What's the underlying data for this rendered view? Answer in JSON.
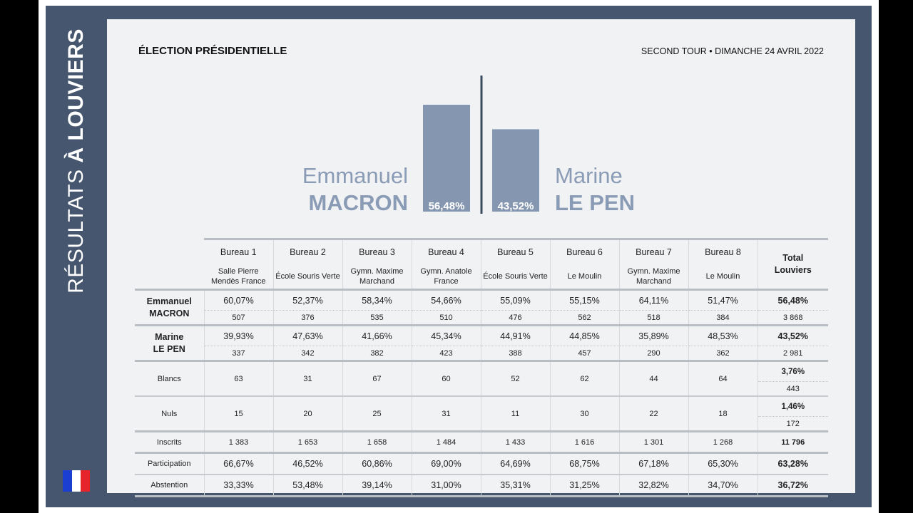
{
  "side_title": {
    "thin": "RÉSULTATS ",
    "bold": "À LOUVIERS"
  },
  "flag_colors": [
    "#1a3fd1",
    "#ffffff",
    "#e8242b"
  ],
  "header": {
    "left": "ÉLECTION PRÉSIDENTIELLE",
    "right": "SECOND TOUR • DIMANCHE 24 AVRIL 2022"
  },
  "candidates": {
    "left": {
      "first": "Emmanuel",
      "last": "MACRON"
    },
    "right": {
      "first": "Marine",
      "last": "LE PEN"
    }
  },
  "colors": {
    "bar": "#8597b0",
    "accent": "#8a9bb5",
    "divider": "#3c4a5e"
  },
  "chart_data": {
    "type": "bar",
    "categories": [
      "Emmanuel MACRON",
      "Marine LE PEN"
    ],
    "values": [
      56.48,
      43.52
    ],
    "value_labels": [
      "56,48%",
      "43,52%"
    ],
    "unit": "%"
  },
  "table": {
    "bureaus": [
      {
        "name": "Bureau 1",
        "location": "Salle Pierre Mendès France"
      },
      {
        "name": "Bureau 2",
        "location": "École Souris Verte"
      },
      {
        "name": "Bureau 3",
        "location": "Gymn. Maxime Marchand"
      },
      {
        "name": "Bureau 4",
        "location": "Gymn. Anatole France"
      },
      {
        "name": "Bureau 5",
        "location": "École Souris Verte"
      },
      {
        "name": "Bureau 6",
        "location": "Le Moulin"
      },
      {
        "name": "Bureau 7",
        "location": "Gymn. Maxime Marchand"
      },
      {
        "name": "Bureau 8",
        "location": "Le Moulin"
      }
    ],
    "total_header": "Total Louviers",
    "macron": {
      "label_first": "Emmanuel",
      "label_last": "MACRON",
      "pct": [
        "60,07%",
        "52,37%",
        "58,34%",
        "54,66%",
        "55,09%",
        "55,15%",
        "64,11%",
        "51,47%"
      ],
      "count": [
        "507",
        "376",
        "535",
        "510",
        "476",
        "562",
        "518",
        "384"
      ],
      "total_pct": "56,48%",
      "total_count": "3 868"
    },
    "lepen": {
      "label_first": "Marine",
      "label_last": "LE PEN",
      "pct": [
        "39,93%",
        "47,63%",
        "41,66%",
        "45,34%",
        "44,91%",
        "44,85%",
        "35,89%",
        "48,53%"
      ],
      "count": [
        "337",
        "342",
        "382",
        "423",
        "388",
        "457",
        "290",
        "362"
      ],
      "total_pct": "43,52%",
      "total_count": "2 981"
    },
    "blancs": {
      "label": "Blancs",
      "values": [
        "63",
        "31",
        "67",
        "60",
        "52",
        "62",
        "44",
        "64"
      ],
      "total_pct": "3,76%",
      "total_count": "443"
    },
    "nuls": {
      "label": "Nuls",
      "values": [
        "15",
        "20",
        "25",
        "31",
        "11",
        "30",
        "22",
        "18"
      ],
      "total_pct": "1,46%",
      "total_count": "172"
    },
    "inscrits": {
      "label": "Inscrits",
      "values": [
        "1 383",
        "1 653",
        "1 658",
        "1 484",
        "1 433",
        "1 616",
        "1 301",
        "1 268"
      ],
      "total": "11 796"
    },
    "participation": {
      "label": "Participation",
      "values": [
        "66,67%",
        "46,52%",
        "60,86%",
        "69,00%",
        "64,69%",
        "68,75%",
        "67,18%",
        "65,30%"
      ],
      "total": "63,28%"
    },
    "abstention": {
      "label": "Abstention",
      "values": [
        "33,33%",
        "53,48%",
        "39,14%",
        "31,00%",
        "35,31%",
        "31,25%",
        "32,82%",
        "34,70%"
      ],
      "total": "36,72%"
    }
  }
}
